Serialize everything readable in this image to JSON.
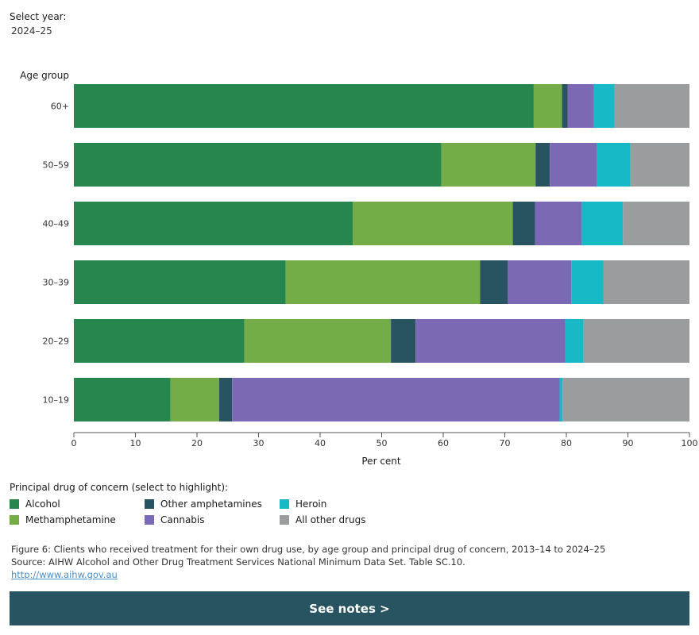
{
  "header": {
    "select_label": "Select year:",
    "selected_year": "2024–25"
  },
  "chart_data": {
    "type": "bar",
    "orientation": "horizontal",
    "stacked": true,
    "ylabel": "Age group",
    "xlabel": "Per cent",
    "xlim": [
      0,
      100
    ],
    "x_ticks": [
      "0",
      "10",
      "20",
      "30",
      "40",
      "50",
      "60",
      "70",
      "80",
      "90",
      "100"
    ],
    "categories": [
      "60+",
      "50–59",
      "40–49",
      "30–39",
      "20–29",
      "10–19"
    ],
    "series": [
      {
        "name": "Alcohol",
        "color": "#26864d",
        "values": [
          74.7,
          59.7,
          45.3,
          34.4,
          27.7,
          15.7
        ]
      },
      {
        "name": "Methamphetamine",
        "color": "#74ac48",
        "values": [
          4.6,
          15.3,
          26.0,
          31.6,
          23.8,
          7.9
        ]
      },
      {
        "name": "Other amphetamines",
        "color": "#285461",
        "values": [
          0.9,
          2.3,
          3.6,
          4.5,
          4.0,
          2.1
        ]
      },
      {
        "name": "Cannabis",
        "color": "#7c69b6",
        "values": [
          4.3,
          7.6,
          7.6,
          10.3,
          24.3,
          53.2
        ]
      },
      {
        "name": "Heroin",
        "color": "#16b9c5",
        "values": [
          3.3,
          5.5,
          6.7,
          5.2,
          3.0,
          0.5
        ]
      },
      {
        "name": "All other drugs",
        "color": "#9a9d9e",
        "values": [
          12.2,
          9.6,
          10.8,
          14.0,
          17.2,
          20.6
        ]
      }
    ],
    "grid": false
  },
  "legend": {
    "title": "Principal drug of concern (select to highlight):",
    "items": [
      {
        "label": "Alcohol",
        "color": "#26864d"
      },
      {
        "label": "Other amphetamines",
        "color": "#285461"
      },
      {
        "label": "Heroin",
        "color": "#16b9c5"
      },
      {
        "label": "Methamphetamine",
        "color": "#74ac48"
      },
      {
        "label": "Cannabis",
        "color": "#7c69b6"
      },
      {
        "label": "All other drugs",
        "color": "#9a9d9e"
      }
    ]
  },
  "caption": {
    "figure": "Figure 6: Clients who received treatment for their own drug use, by age group and principal drug of concern, 2013–14 to 2024–25",
    "source": "Source: AIHW Alcohol and Other Drug Treatment Services National Minimum Data Set. Table SC.10.",
    "link": "http://www.aihw.gov.au"
  },
  "notes_button": {
    "label": "See notes >",
    "color": "#285461"
  }
}
